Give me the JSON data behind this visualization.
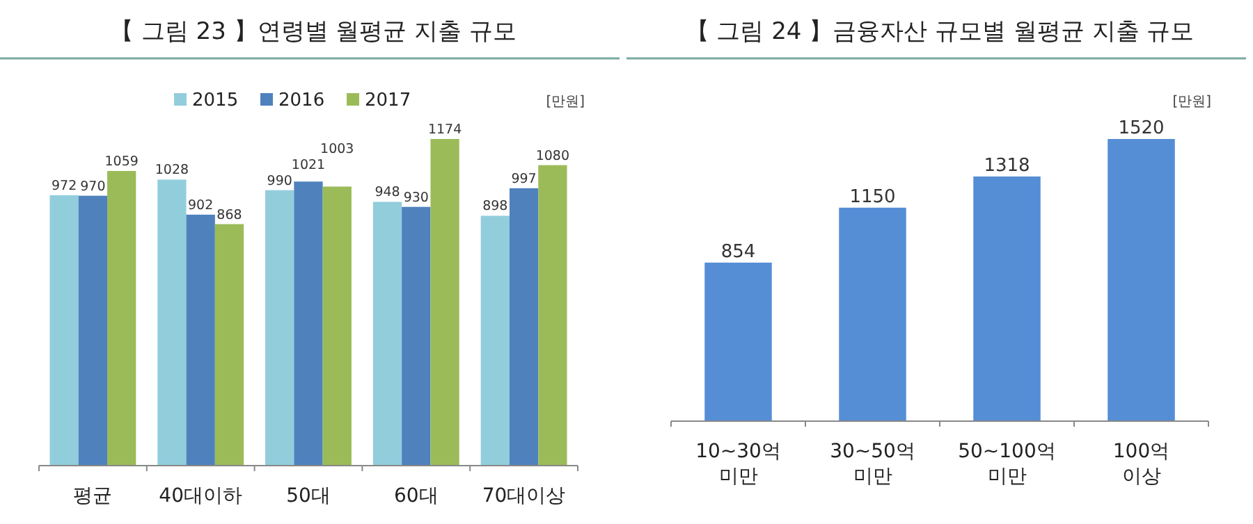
{
  "chart_data": [
    {
      "type": "bar",
      "title": "【 그림 23 】연령별 월평균 지출 규모",
      "annotations": [
        "[만원]"
      ],
      "categories": [
        "평균",
        "40대이하",
        "50대",
        "60대",
        "70대이상"
      ],
      "legend": "top",
      "data_labels": true,
      "series": [
        {
          "name": "2015",
          "color": "#92cddc",
          "values": [
            972,
            1028,
            990,
            948,
            898
          ]
        },
        {
          "name": "2016",
          "color": "#4f81bd",
          "values": [
            970,
            902,
            1021,
            930,
            997
          ]
        },
        {
          "name": "2017",
          "color": "#9bbb59",
          "values": [
            1059,
            868,
            1003,
            1174,
            1080
          ]
        }
      ]
    },
    {
      "type": "bar",
      "title": "【 그림 24 】금융자산 규모별 월평균 지출 규모",
      "annotations": [
        "[만원]"
      ],
      "categories": [
        "10~30억\n미만",
        "30~50억\n미만",
        "50~100억\n미만",
        "100억\n이상"
      ],
      "data_labels": true,
      "series": [
        {
          "color": "#558ed5",
          "values": [
            854,
            1150,
            1318,
            1520
          ]
        }
      ]
    }
  ]
}
